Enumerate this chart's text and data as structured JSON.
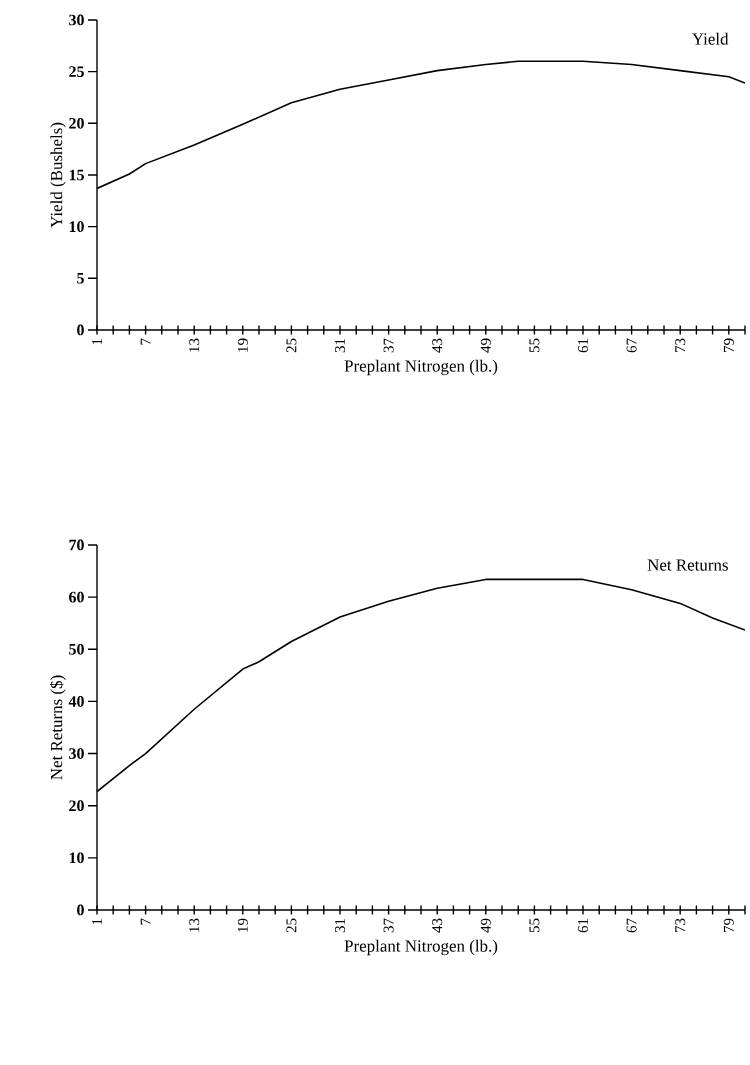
{
  "chart_data": [
    {
      "type": "line",
      "xlabel": "Preplant Nitrogen (lb.)",
      "ylabel": "Yield (Bushels)",
      "x": [
        1,
        5,
        7,
        13,
        19,
        25,
        31,
        37,
        43,
        49,
        53,
        55,
        61,
        67,
        73,
        79,
        81
      ],
      "series": [
        {
          "name": "Yield",
          "color": "#000000",
          "values": [
            13.7,
            15.1,
            16.1,
            17.9,
            19.9,
            22.0,
            23.3,
            24.2,
            25.1,
            25.7,
            26.0,
            26.0,
            26.0,
            25.7,
            25.1,
            24.5,
            23.9
          ]
        }
      ],
      "xlim": [
        1,
        81
      ],
      "xticks": [
        1,
        {
          "value": 3,
          "label": null
        },
        {
          "value": 5,
          "label": null
        },
        7,
        {
          "value": 9,
          "label": null
        },
        {
          "value": 11,
          "label": null
        },
        13,
        {
          "value": 15,
          "label": null
        },
        {
          "value": 17,
          "label": null
        },
        19,
        {
          "value": 21,
          "label": null
        },
        {
          "value": 23,
          "label": null
        },
        25,
        {
          "value": 27,
          "label": null
        },
        {
          "value": 29,
          "label": null
        },
        31,
        {
          "value": 33,
          "label": null
        },
        {
          "value": 35,
          "label": null
        },
        37,
        {
          "value": 39,
          "label": null
        },
        {
          "value": 41,
          "label": null
        },
        43,
        {
          "value": 45,
          "label": null
        },
        {
          "value": 47,
          "label": null
        },
        49,
        {
          "value": 51,
          "label": null
        },
        {
          "value": 53,
          "label": null
        },
        55,
        {
          "value": 57,
          "label": null
        },
        {
          "value": 59,
          "label": null
        },
        61,
        {
          "value": 63,
          "label": null
        },
        {
          "value": 65,
          "label": null
        },
        67,
        {
          "value": 69,
          "label": null
        },
        {
          "value": 71,
          "label": null
        },
        73,
        {
          "value": 75,
          "label": null
        },
        {
          "value": 77,
          "label": null
        },
        79,
        {
          "value": 81,
          "label": null
        }
      ],
      "ylim": [
        0,
        30
      ],
      "yticks": [
        0,
        5,
        10,
        15,
        20,
        25,
        30
      ],
      "grid": false,
      "legend": false,
      "marker": "none",
      "line_style": "solid"
    },
    {
      "type": "line",
      "xlabel": "Preplant Nitrogen (lb.)",
      "ylabel": "Net Returns ($)",
      "x": [
        1,
        5,
        7,
        13,
        19,
        21,
        25,
        31,
        37,
        43,
        49,
        55,
        61,
        67,
        73,
        77,
        81
      ],
      "series": [
        {
          "name": "Net Returns",
          "color": "#000000",
          "values": [
            22.7,
            27.7,
            30.0,
            38.5,
            46.2,
            47.6,
            51.5,
            56.2,
            59.2,
            61.7,
            63.4,
            63.4,
            63.4,
            61.4,
            58.8,
            56.0,
            53.7
          ]
        }
      ],
      "xlim": [
        1,
        81
      ],
      "xticks": [
        1,
        {
          "value": 3,
          "label": null
        },
        {
          "value": 5,
          "label": null
        },
        7,
        {
          "value": 9,
          "label": null
        },
        {
          "value": 11,
          "label": null
        },
        13,
        {
          "value": 15,
          "label": null
        },
        {
          "value": 17,
          "label": null
        },
        19,
        {
          "value": 21,
          "label": null
        },
        {
          "value": 23,
          "label": null
        },
        25,
        {
          "value": 27,
          "label": null
        },
        {
          "value": 29,
          "label": null
        },
        31,
        {
          "value": 33,
          "label": null
        },
        {
          "value": 35,
          "label": null
        },
        37,
        {
          "value": 39,
          "label": null
        },
        {
          "value": 41,
          "label": null
        },
        43,
        {
          "value": 45,
          "label": null
        },
        {
          "value": 47,
          "label": null
        },
        49,
        {
          "value": 51,
          "label": null
        },
        {
          "value": 53,
          "label": null
        },
        55,
        {
          "value": 57,
          "label": null
        },
        {
          "value": 59,
          "label": null
        },
        61,
        {
          "value": 63,
          "label": null
        },
        {
          "value": 65,
          "label": null
        },
        67,
        {
          "value": 69,
          "label": null
        },
        {
          "value": 71,
          "label": null
        },
        73,
        {
          "value": 75,
          "label": null
        },
        {
          "value": 77,
          "label": null
        },
        79,
        {
          "value": 81,
          "label": null
        }
      ],
      "ylim": [
        0,
        70
      ],
      "yticks": [
        0,
        10,
        20,
        30,
        40,
        50,
        60,
        70
      ],
      "grid": false,
      "legend": false,
      "marker": "none",
      "line_style": "solid"
    }
  ]
}
